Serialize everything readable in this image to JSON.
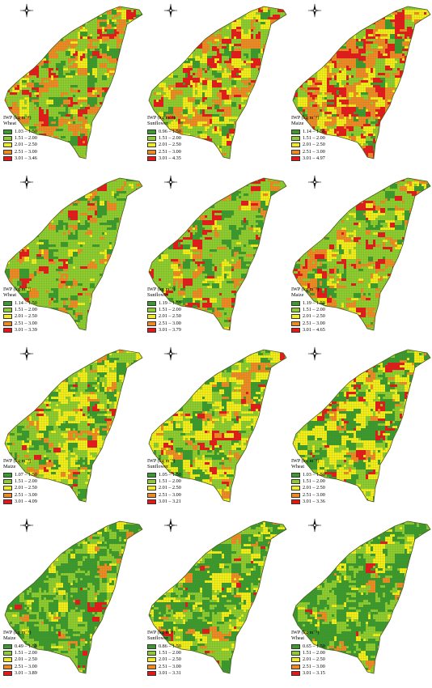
{
  "legend_title": "IWP (kg m⁻³)",
  "colors": {
    "class1": "#3a9a2e",
    "class2": "#8ccc2e",
    "class3": "#f2ee1a",
    "class4": "#ee8a24",
    "class5": "#e4181a",
    "grid": "#6a6a2a"
  },
  "icons": {
    "north_arrow": "compass-rose-icon"
  },
  "panels": [
    {
      "crop": "Wheat",
      "ranges": [
        "1.03 – 1.50",
        "1.51 – 2.00",
        "2.01 – 2.50",
        "2.51 – 3.00",
        "3.01 – 3.46"
      ],
      "dominant": [
        0.18,
        0.4,
        0.12,
        0.2,
        0.1
      ]
    },
    {
      "crop": "Sunflower",
      "ranges": [
        "0.96 – 1.50",
        "1.51 – 2.00",
        "2.01 – 2.50",
        "2.51 – 3.00",
        "3.01 – 4.35"
      ],
      "dominant": [
        0.1,
        0.38,
        0.22,
        0.14,
        0.16
      ]
    },
    {
      "crop": "Maize",
      "ranges": [
        "1.14 – 1.50",
        "1.51 – 2.00",
        "2.01 – 2.50",
        "2.51 – 3.00",
        "3.01 – 4.97"
      ],
      "dominant": [
        0.08,
        0.22,
        0.18,
        0.3,
        0.22
      ]
    },
    {
      "crop": "Wheat",
      "ranges": [
        "1.14 – 1.50",
        "1.51 – 2.00",
        "2.01 – 2.50",
        "2.51 – 3.00",
        "3.01 – 3.39"
      ],
      "dominant": [
        0.14,
        0.58,
        0.06,
        0.14,
        0.08
      ]
    },
    {
      "crop": "Sunflower",
      "ranges": [
        "1.19 – 1.50",
        "1.51 – 2.00",
        "2.01 – 2.50",
        "2.51 – 3.00",
        "3.01 – 3.79"
      ],
      "dominant": [
        0.16,
        0.52,
        0.08,
        0.14,
        0.1
      ]
    },
    {
      "crop": "Maize",
      "ranges": [
        "1.19 – 1.50",
        "1.51 – 2.00",
        "2.01 – 2.50",
        "2.51 – 3.00",
        "3.01 – 4.65"
      ],
      "dominant": [
        0.14,
        0.5,
        0.1,
        0.16,
        0.1
      ]
    },
    {
      "crop": "Maize",
      "ranges": [
        "1.07 – 1.50",
        "1.51 – 2.00",
        "2.01 – 2.50",
        "2.51 – 3.00",
        "3.01 – 4.09"
      ],
      "dominant": [
        0.16,
        0.36,
        0.34,
        0.08,
        0.06
      ]
    },
    {
      "crop": "Sunflower",
      "ranges": [
        "1.05 – 1.50",
        "1.51 – 2.00",
        "2.01 – 2.50",
        "2.51 – 3.00",
        "3.01 – 3.21"
      ],
      "dominant": [
        0.2,
        0.3,
        0.28,
        0.14,
        0.08
      ]
    },
    {
      "crop": "Wheat",
      "ranges": [
        "1.03 – 1.50",
        "1.51 – 2.00",
        "2.01 – 2.50",
        "2.51 – 3.00",
        "3.01 – 3.36"
      ],
      "dominant": [
        0.26,
        0.26,
        0.36,
        0.06,
        0.06
      ]
    },
    {
      "crop": "Maize",
      "ranges": [
        "0.49 – 1.50",
        "1.51 – 2.00",
        "2.01 – 2.50",
        "2.51 – 3.00",
        "3.01 – 3.89"
      ],
      "dominant": [
        0.48,
        0.32,
        0.14,
        0.04,
        0.02
      ]
    },
    {
      "crop": "Sunflower",
      "ranges": [
        "0.86 – 1.50",
        "1.51 – 2.00",
        "2.01 – 2.50",
        "2.51 – 3.00",
        "3.01 – 3.31"
      ],
      "dominant": [
        0.4,
        0.3,
        0.22,
        0.05,
        0.03
      ]
    },
    {
      "crop": "Wheat",
      "ranges": [
        "0.65 – 1.50",
        "1.51 – 2.00",
        "2.01 – 2.50",
        "2.51 – 3.00",
        "3.01 – 3.15"
      ],
      "dominant": [
        0.5,
        0.34,
        0.12,
        0.03,
        0.01
      ]
    }
  ]
}
